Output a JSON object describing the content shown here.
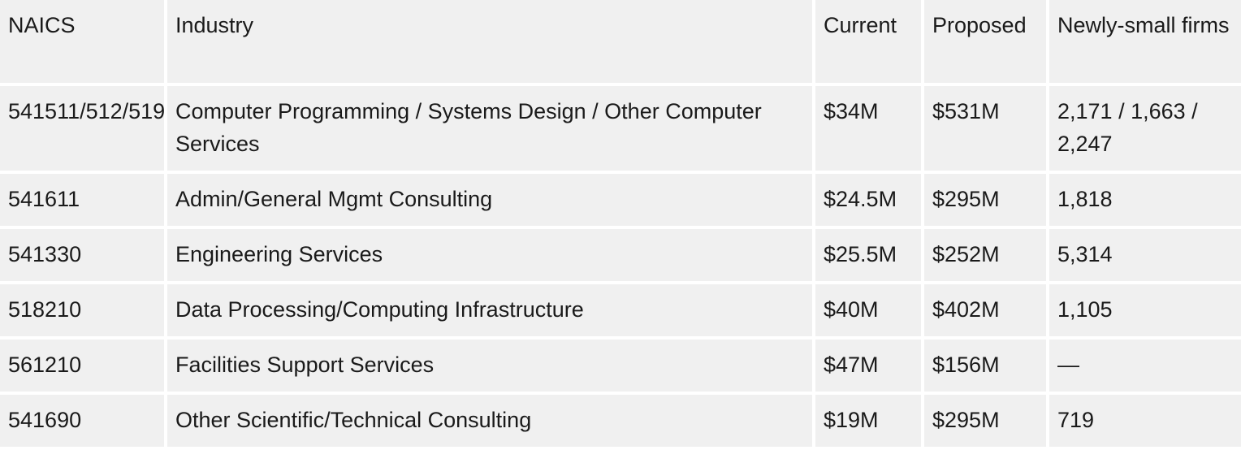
{
  "table": {
    "header": [
      "NAICS",
      "Industry",
      "Current",
      "Proposed",
      "Newly-small firms"
    ],
    "rows": [
      [
        "541511/512/519",
        "Computer Programming / Systems Design / Other Computer Services",
        "$34M",
        "$531M",
        "2,171 / 1,663 / 2,247"
      ],
      [
        "541611",
        "Admin/General Mgmt Consulting",
        "$24.5M",
        "$295M",
        "1,818"
      ],
      [
        "541330",
        "Engineering Services",
        "$25.5M",
        "$252M",
        "5,314"
      ],
      [
        "518210",
        "Data Processing/Computing Infrastructure",
        "$40M",
        "$402M",
        "1,105"
      ],
      [
        "561210",
        "Facilities Support Services",
        "$47M",
        "$156M",
        "—"
      ],
      [
        "541690",
        "Other Scientific/Technical Consulting",
        "$19M",
        "$295M",
        "719"
      ]
    ]
  }
}
